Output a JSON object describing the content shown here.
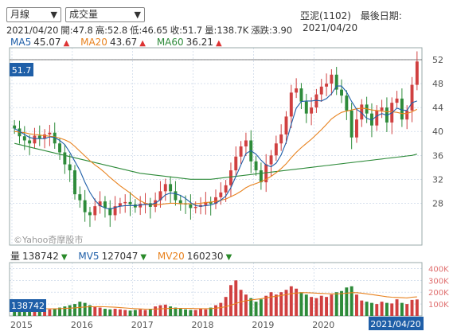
{
  "controls": {
    "period": "月線",
    "indicator": "成交量"
  },
  "header": {
    "stock_name": "亞泥(1102)",
    "last_date_label": "最後日期:",
    "last_date": "2021/04/20"
  },
  "ohlc": {
    "date": "2021/04/20",
    "open_label": "開:",
    "open": "47.8",
    "high_label": "高:",
    "high": "52.8",
    "low_label": "低:",
    "low": "46.65",
    "close_label": "收:",
    "close": "51.7",
    "volume_label": "量:",
    "volume": "138.7K",
    "change_label": "漲跌:",
    "change": "3.90"
  },
  "ma_legend": [
    {
      "name": "MA5",
      "value": "45.07",
      "color": "#1f5fa8",
      "trend": "up"
    },
    {
      "name": "MA20",
      "value": "43.67",
      "color": "#e8821e",
      "trend": "up"
    },
    {
      "name": "MA60",
      "value": "36.21",
      "color": "#2e8b3a",
      "trend": "up"
    }
  ],
  "volume_legend": [
    {
      "name": "量",
      "value": "138742",
      "color": "#333333",
      "trend": "down"
    },
    {
      "name": "MV5",
      "value": "127047",
      "color": "#1f5fa8",
      "trend": "down"
    },
    {
      "name": "MV20",
      "value": "160230",
      "color": "#e8821e",
      "trend": "down"
    }
  ],
  "watermark": "©Yahoo奇摩股市",
  "colors": {
    "up": "#d04040",
    "down": "#2e8b3a",
    "grid": "#c0d0e4",
    "axis_text": "#555555",
    "price_tag": "#1f5fa8",
    "vol_tick_text": "#e07070"
  },
  "chart_data": {
    "type": "candlestick",
    "price_axis": {
      "ticks": [
        28,
        32,
        36,
        40,
        44,
        48,
        52
      ],
      "ylim": [
        21,
        54
      ]
    },
    "current_price_tag": "51.7",
    "volume_axis": {
      "ticks": [
        100000,
        200000,
        300000,
        400000
      ],
      "tick_labels": [
        "100K",
        "200K",
        "300K",
        "400K"
      ],
      "ylim": [
        0,
        450000
      ]
    },
    "current_volume_tag": "138742",
    "x_ticks": [
      "2015",
      "2016",
      "2017",
      "2018",
      "2019",
      "2020"
    ],
    "x_tick_month_index": [
      0,
      12,
      24,
      36,
      48,
      60
    ],
    "last_date_tag": "2021/04/20",
    "closes": [
      40.5,
      39.2,
      38.5,
      38.0,
      39.3,
      38.8,
      39.5,
      39.8,
      38.0,
      36.5,
      34.5,
      33.5,
      29.5,
      28.5,
      26.5,
      26.0,
      27.5,
      28.3,
      27.2,
      26.0,
      27.5,
      28.0,
      28.2,
      27.8,
      27.3,
      27.9,
      28.0,
      27.4,
      28.5,
      30.0,
      31.2,
      30.0,
      28.5,
      28.0,
      27.8,
      27.2,
      27.4,
      27.7,
      28.2,
      27.9,
      29.0,
      29.8,
      31.0,
      33.5,
      35.8,
      37.5,
      38.5,
      35.0,
      33.5,
      31.5,
      34.5,
      36.0,
      38.0,
      39.5,
      42.5,
      46.5,
      47.2,
      45.0,
      43.0,
      44.0,
      46.2,
      47.5,
      48.0,
      49.5,
      47.0,
      46.0,
      43.5,
      39.0,
      42.0,
      44.5,
      43.0,
      41.0,
      43.5,
      44.0,
      41.5,
      44.8,
      45.5,
      42.0,
      43.5,
      47.8,
      51.7
    ],
    "opens": [
      41.0,
      40.5,
      39.2,
      38.5,
      38.0,
      39.3,
      38.8,
      39.5,
      39.8,
      38.0,
      36.5,
      34.5,
      33.5,
      29.5,
      28.5,
      26.5,
      26.0,
      27.5,
      28.3,
      27.2,
      26.0,
      27.5,
      28.0,
      28.2,
      27.8,
      27.3,
      27.9,
      28.0,
      27.4,
      28.5,
      30.0,
      31.2,
      30.0,
      28.5,
      28.0,
      27.8,
      27.2,
      27.4,
      27.7,
      28.2,
      27.9,
      29.0,
      29.8,
      31.0,
      33.5,
      35.8,
      37.5,
      38.5,
      35.0,
      33.5,
      31.5,
      34.5,
      36.0,
      38.0,
      39.5,
      42.5,
      46.5,
      47.2,
      45.0,
      43.0,
      44.0,
      46.2,
      47.5,
      48.0,
      49.5,
      47.0,
      46.0,
      43.5,
      39.0,
      42.0,
      44.5,
      43.0,
      41.0,
      43.5,
      44.0,
      41.5,
      44.8,
      45.5,
      42.0,
      43.5,
      47.8
    ],
    "ma5": [
      40.5,
      40.0,
      39.5,
      39.0,
      38.8,
      38.8,
      38.8,
      39.1,
      39.0,
      38.5,
      37.8,
      36.5,
      35.0,
      33.5,
      31.5,
      29.8,
      28.5,
      27.6,
      27.2,
      27.0,
      27.3,
      27.5,
      27.6,
      27.6,
      27.6,
      27.7,
      27.8,
      27.8,
      28.0,
      28.6,
      29.4,
      29.7,
      29.6,
      29.3,
      28.8,
      28.1,
      27.6,
      27.5,
      27.6,
      27.7,
      28.0,
      28.5,
      29.2,
      30.6,
      32.5,
      34.4,
      36.3,
      36.8,
      36.2,
      35.2,
      34.4,
      34.1,
      34.7,
      36.1,
      38.2,
      41.2,
      43.9,
      45.0,
      45.1,
      45.1,
      45.2,
      45.1,
      45.5,
      46.3,
      47.6,
      47.6,
      46.6,
      45.0,
      43.7,
      43.1,
      42.2,
      41.9,
      42.6,
      43.0,
      42.7,
      43.1,
      43.9,
      43.6,
      43.5,
      44.8,
      45.1
    ],
    "ma20": [
      40.0,
      39.9,
      39.8,
      39.6,
      39.5,
      39.4,
      39.3,
      39.2,
      39.1,
      38.9,
      38.6,
      38.2,
      37.5,
      36.7,
      35.9,
      35.1,
      34.4,
      33.8,
      33.1,
      32.3,
      31.6,
      30.9,
      30.3,
      29.7,
      29.0,
      28.4,
      28.0,
      27.8,
      27.7,
      27.8,
      27.9,
      28.0,
      28.0,
      27.9,
      27.9,
      27.9,
      27.9,
      28.0,
      28.1,
      28.2,
      28.3,
      28.5,
      28.7,
      29.1,
      29.5,
      30.0,
      30.6,
      31.0,
      31.3,
      31.6,
      32.0,
      32.5,
      33.1,
      33.8,
      34.6,
      35.6,
      36.5,
      37.3,
      38.0,
      38.7,
      39.5,
      40.3,
      41.2,
      42.1,
      42.7,
      43.2,
      43.4,
      43.6,
      43.8,
      43.9,
      43.8,
      43.6,
      43.5,
      43.4,
      43.3,
      43.3,
      43.2,
      43.0,
      43.0,
      43.3,
      43.7
    ],
    "ma60": [
      38.0,
      37.8,
      37.6,
      37.4,
      37.2,
      37.0,
      36.8,
      36.6,
      36.4,
      36.2,
      36.0,
      35.8,
      35.6,
      35.4,
      35.2,
      35.0,
      34.8,
      34.6,
      34.4,
      34.2,
      34.0,
      33.8,
      33.6,
      33.4,
      33.2,
      33.0,
      32.9,
      32.8,
      32.7,
      32.6,
      32.5,
      32.4,
      32.3,
      32.2,
      32.1,
      32.0,
      32.0,
      32.0,
      32.0,
      32.0,
      32.1,
      32.2,
      32.3,
      32.4,
      32.5,
      32.6,
      32.7,
      32.8,
      32.9,
      33.0,
      33.1,
      33.2,
      33.3,
      33.4,
      33.5,
      33.6,
      33.7,
      33.8,
      33.9,
      34.0,
      34.1,
      34.2,
      34.3,
      34.4,
      34.5,
      34.6,
      34.7,
      34.8,
      34.9,
      35.0,
      35.1,
      35.2,
      35.3,
      35.4,
      35.5,
      35.6,
      35.7,
      35.8,
      35.9,
      36.0,
      36.21
    ],
    "volumes": [
      80000,
      60000,
      50000,
      55000,
      60000,
      50000,
      45000,
      55000,
      60000,
      70000,
      80000,
      90000,
      100000,
      120000,
      110000,
      90000,
      80000,
      70000,
      60000,
      55000,
      60000,
      55000,
      50000,
      45000,
      50000,
      55000,
      50000,
      60000,
      80000,
      90000,
      95000,
      80000,
      70000,
      60000,
      55000,
      50000,
      50000,
      60000,
      55000,
      70000,
      90000,
      110000,
      160000,
      260000,
      300000,
      220000,
      180000,
      150000,
      120000,
      140000,
      170000,
      200000,
      180000,
      200000,
      220000,
      250000,
      230000,
      200000,
      180000,
      160000,
      150000,
      170000,
      160000,
      180000,
      200000,
      210000,
      240000,
      250000,
      180000,
      130000,
      120000,
      110000,
      100000,
      120000,
      110000,
      105000,
      140000,
      110000,
      100000,
      135000,
      138742
    ],
    "mv20": [
      70000,
      70000,
      68000,
      66000,
      64000,
      62000,
      60000,
      60000,
      60000,
      61000,
      63000,
      65000,
      68000,
      72000,
      75000,
      77000,
      78000,
      78000,
      77000,
      75000,
      73000,
      70000,
      67000,
      64000,
      61000,
      59000,
      57000,
      57000,
      58000,
      60000,
      62000,
      63000,
      64000,
      64000,
      64000,
      63000,
      62000,
      61000,
      61000,
      62000,
      65000,
      70000,
      78000,
      90000,
      105000,
      118000,
      128000,
      135000,
      140000,
      145000,
      152000,
      160000,
      166000,
      172000,
      180000,
      188000,
      193000,
      196000,
      196000,
      194000,
      192000,
      190000,
      188000,
      186000,
      186000,
      188000,
      192000,
      196000,
      196000,
      192000,
      186000,
      180000,
      174000,
      168000,
      162000,
      158000,
      156000,
      154000,
      152000,
      158000,
      160230
    ]
  }
}
